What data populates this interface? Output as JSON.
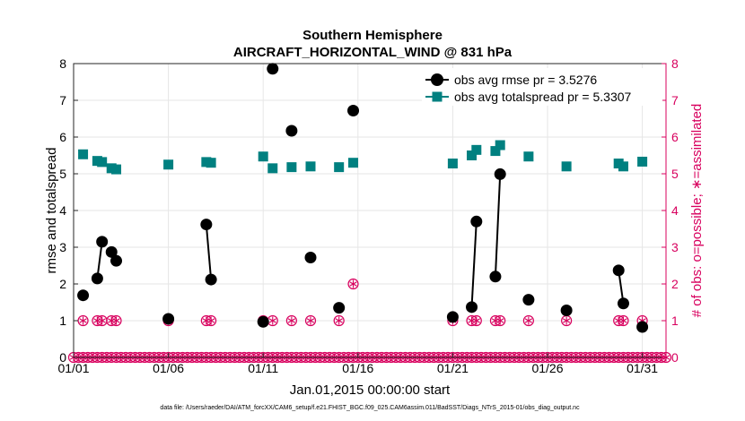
{
  "chart_data": {
    "type": "scatter",
    "title": "Southern Hemisphere",
    "subtitle": "AIRCRAFT_HORIZONTAL_WIND @ 831 hPa",
    "xlabel": "Jan.01,2015 00:00:00 start",
    "ylabel_left": "rmse and totalspread",
    "ylabel_right": "# of obs: o=possible; ∗=assimilated",
    "footnote": "data file: /Users/raeder/DAI/ATM_forcXX/CAM6_setup/f.e21.FHIST_BGC.f09_025.CAM6assim.011/BadSST/Diags_NTrS_2015-01/obs_diag_output.nc",
    "x_unit": "day of January 2015 (fractional)",
    "x_ticks": [
      {
        "value": 1,
        "label": "01/01"
      },
      {
        "value": 6,
        "label": "01/06"
      },
      {
        "value": 11,
        "label": "01/11"
      },
      {
        "value": 16,
        "label": "01/16"
      },
      {
        "value": 21,
        "label": "01/21"
      },
      {
        "value": 26,
        "label": "01/26"
      },
      {
        "value": 31,
        "label": "01/31"
      }
    ],
    "xlim": [
      1,
      32.25
    ],
    "ylim_left": [
      0,
      8
    ],
    "ylim_right": [
      0,
      8
    ],
    "y_ticks_left": [
      0,
      1,
      2,
      3,
      4,
      5,
      6,
      7,
      8
    ],
    "y_ticks_right": [
      0,
      1,
      2,
      3,
      4,
      5,
      6,
      7,
      8
    ],
    "legend_position": "top-right",
    "colors": {
      "rmse": "#000000",
      "spread": "#008080",
      "obs": "#d8005e",
      "axis_right": "#d8005e"
    },
    "series": [
      {
        "name": "obs avg rmse pr = 3.5276",
        "color": "#000000",
        "marker": "circle",
        "x": [
          1.5,
          2.25,
          2.5,
          3.0,
          3.25,
          6.0,
          8.0,
          8.25,
          11.0,
          11.5,
          12.5,
          13.5,
          15.0,
          15.75,
          21.0,
          22.0,
          22.25,
          23.25,
          23.5,
          25.0,
          27.0,
          29.75,
          30.0,
          31.0
        ],
        "y": [
          1.69,
          2.15,
          3.15,
          2.87,
          2.63,
          1.05,
          3.62,
          2.12,
          0.97,
          7.86,
          6.17,
          2.72,
          1.35,
          6.72,
          1.1,
          1.37,
          3.7,
          2.2,
          4.99,
          1.57,
          1.28,
          2.37,
          1.47,
          0.83
        ],
        "segments": [
          [
            1,
            2
          ],
          [
            3,
            4
          ],
          [
            6,
            7
          ],
          [
            15,
            16
          ],
          [
            17,
            18
          ],
          [
            21,
            22
          ]
        ]
      },
      {
        "name": "obs avg totalspread pr = 5.3307",
        "color": "#008080",
        "marker": "square",
        "x": [
          1.5,
          2.25,
          2.5,
          3.0,
          3.25,
          6.0,
          8.0,
          8.25,
          11.0,
          11.5,
          12.5,
          13.5,
          15.0,
          15.75,
          21.0,
          22.0,
          22.25,
          23.25,
          23.5,
          25.0,
          27.0,
          29.75,
          30.0,
          31.0
        ],
        "y": [
          5.53,
          5.35,
          5.32,
          5.15,
          5.12,
          5.25,
          5.32,
          5.3,
          5.47,
          5.15,
          5.18,
          5.2,
          5.18,
          5.3,
          5.28,
          5.5,
          5.65,
          5.62,
          5.78,
          5.47,
          5.2,
          5.28,
          5.2,
          5.33
        ],
        "segments": [
          [
            1,
            2
          ],
          [
            3,
            4
          ],
          [
            6,
            7
          ],
          [
            15,
            16
          ],
          [
            17,
            18
          ],
          [
            21,
            22
          ]
        ]
      },
      {
        "name": "# of obs",
        "axis": "right",
        "color": "#d8005e",
        "marker": "circle-asterisk",
        "x": [
          1.5,
          2.25,
          2.5,
          3.0,
          3.25,
          6.0,
          8.0,
          8.25,
          11.0,
          11.5,
          12.5,
          13.5,
          15.0,
          15.75,
          21.0,
          22.0,
          22.25,
          23.25,
          23.5,
          25.0,
          27.0,
          29.75,
          30.0,
          31.0
        ],
        "y": [
          1,
          1,
          1,
          1,
          1,
          1,
          1,
          1,
          1,
          1,
          1,
          1,
          1,
          2,
          1,
          1,
          1,
          1,
          1,
          1,
          1,
          1,
          1,
          1
        ]
      },
      {
        "name": "# of obs (zero)",
        "axis": "right",
        "color": "#d8005e",
        "marker": "circle-asterisk",
        "x_start": 1.0,
        "x_step": 0.25,
        "x_end": 32.25,
        "y": 0
      }
    ]
  }
}
